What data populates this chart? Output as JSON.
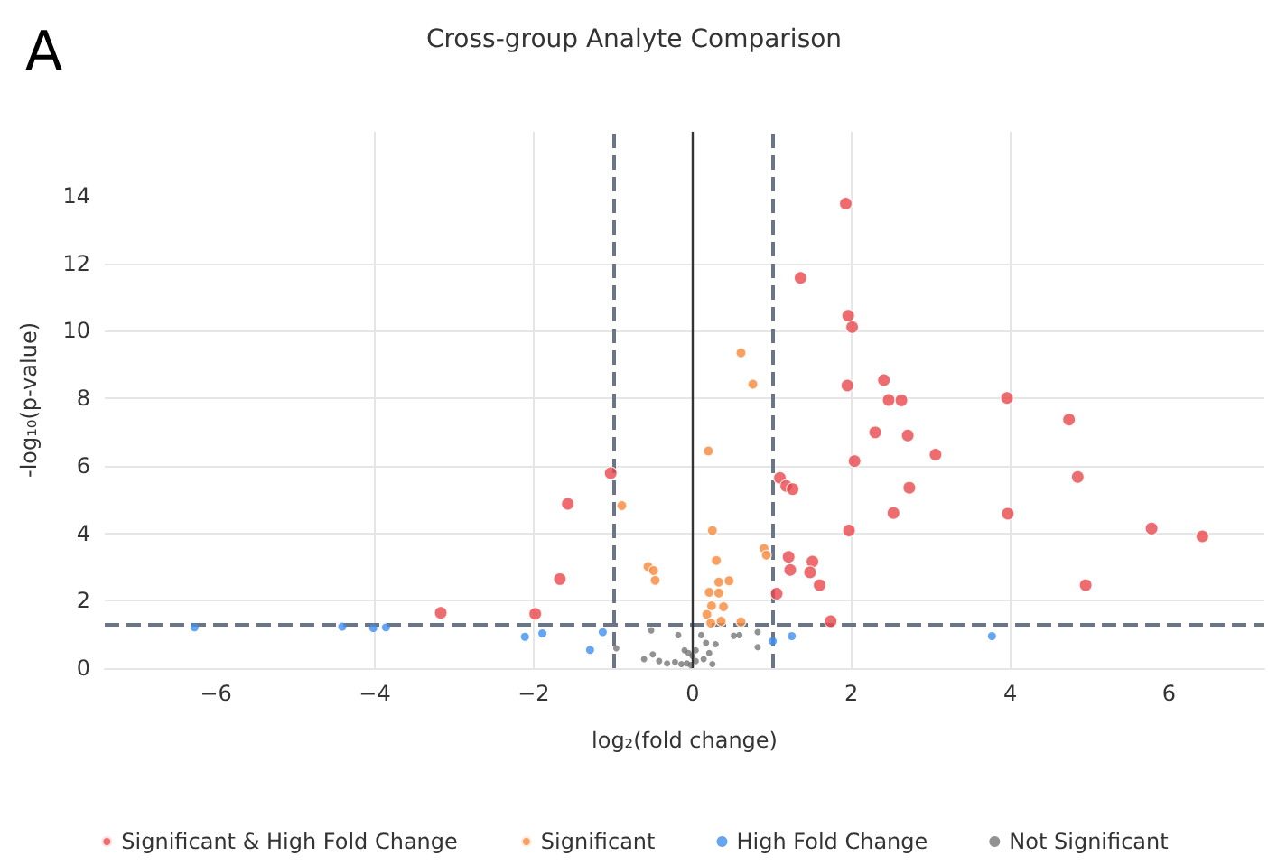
{
  "chart_data": {
    "type": "scatter",
    "title": "Cross-group Analyte Comparison",
    "xlabel": "log₂(fold change)",
    "ylabel": "-log₁₀(p-value)",
    "annotations": [
      "A"
    ],
    "xlim": [
      -7.4,
      7.2
    ],
    "ylim": [
      0,
      15.9
    ],
    "xticks": [
      -6,
      -4,
      -2,
      0,
      2,
      4,
      6
    ],
    "yticks": [
      0,
      2,
      4,
      6,
      8,
      10,
      12,
      14
    ],
    "grid": true,
    "legend": "bottom",
    "marker": "circle",
    "ref_lines": [
      {
        "axis": "x",
        "value": -1,
        "color": "#6b7588",
        "line_style": "dashed"
      },
      {
        "axis": "x",
        "value": 1,
        "color": "#6b7588",
        "line_style": "dashed"
      },
      {
        "axis": "y",
        "value": 1.3,
        "color": "#6b7588",
        "line_style": "dashed"
      },
      {
        "axis": "x",
        "value": 0,
        "color": "#333333",
        "line_style": "solid"
      }
    ],
    "series": [
      {
        "name": "Significant & High Fold Change",
        "color": "#e8474c",
        "x": [
          -1.03,
          -1.57,
          -1.67,
          -1.98,
          -3.17,
          1.93,
          1.36,
          1.96,
          2.01,
          1.95,
          2.41,
          2.47,
          2.63,
          3.96,
          4.74,
          2.3,
          2.71,
          3.06,
          2.04,
          1.1,
          1.18,
          1.26,
          2.73,
          4.85,
          2.53,
          3.97,
          1.97,
          5.78,
          6.42,
          1.21,
          1.23,
          1.51,
          1.48,
          1.6,
          4.95,
          1.06,
          1.74
        ],
        "values": [
          5.78,
          4.87,
          2.64,
          1.61,
          1.64,
          13.77,
          11.57,
          10.45,
          10.11,
          8.38,
          8.54,
          7.95,
          7.94,
          8.01,
          7.37,
          6.99,
          6.9,
          6.33,
          6.14,
          5.64,
          5.4,
          5.31,
          5.35,
          5.67,
          4.6,
          4.58,
          4.08,
          4.14,
          3.91,
          3.3,
          2.91,
          3.16,
          2.84,
          2.46,
          2.46,
          2.21,
          1.39
        ]
      },
      {
        "name": "Significant",
        "color": "#f5883a",
        "x": [
          -0.89,
          -0.56,
          -0.49,
          -0.47,
          0.61,
          0.76,
          0.2,
          0.25,
          0.9,
          0.93,
          0.3,
          0.33,
          0.46,
          0.21,
          0.33,
          0.24,
          0.39,
          0.18,
          0.23,
          0.36,
          0.61
        ],
        "values": [
          4.82,
          3.01,
          2.89,
          2.6,
          9.35,
          8.42,
          6.44,
          4.08,
          3.55,
          3.35,
          3.19,
          2.55,
          2.59,
          2.25,
          2.23,
          1.85,
          1.82,
          1.59,
          1.34,
          1.39,
          1.37
        ]
      },
      {
        "name": "High Fold Change",
        "color": "#3f8ef0",
        "x": [
          -6.27,
          -4.41,
          -4.02,
          -3.86,
          -2.11,
          -1.89,
          -1.29,
          -1.13,
          1.01,
          1.25,
          3.77
        ],
        "values": [
          1.21,
          1.23,
          1.19,
          1.21,
          0.93,
          1.03,
          0.54,
          1.07,
          0.8,
          0.95,
          0.95
        ]
      },
      {
        "name": "Not Significant",
        "color": "#777777",
        "x": [
          -0.52,
          -0.18,
          -0.96,
          -0.61,
          -0.5,
          -0.42,
          -0.32,
          -0.22,
          -0.14,
          -0.07,
          -0.02,
          0.04,
          0.14,
          0.25,
          0.21,
          0.17,
          0.29,
          0.11,
          0.52,
          0.59,
          0.82,
          0.82,
          0.04,
          -0.05,
          0,
          -0.1
        ],
        "values": [
          1.12,
          0.98,
          0.59,
          0.27,
          0.41,
          0.21,
          0.14,
          0.18,
          0.12,
          0.14,
          0.09,
          0.21,
          0.27,
          0.12,
          0.45,
          0.75,
          0.71,
          0.98,
          0.96,
          0.98,
          1.07,
          0.62,
          0.53,
          0.45,
          0.36,
          0.53
        ]
      }
    ]
  }
}
